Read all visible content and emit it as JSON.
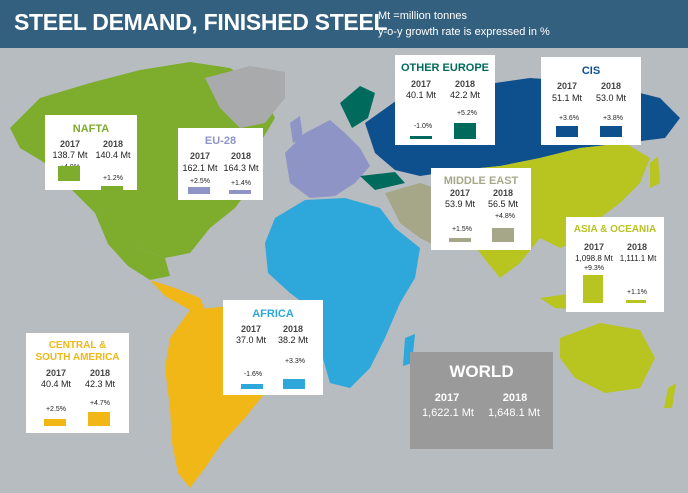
{
  "title": "STEEL DEMAND, FINISHED STEEL",
  "notes": [
    "Mt =million tonnes",
    "y-o-y growth rate is expressed in %"
  ],
  "colors": {
    "header": "#34607f",
    "background": "#b7bcc1",
    "nafta": "#7eac2d",
    "eu28": "#8e95c6",
    "other_europe": "#006a5c",
    "cis": "#0e4f8e",
    "middle_east": "#a6a789",
    "asia_oceania": "#b8c41f",
    "africa": "#2ea7da",
    "central_south_america": "#f1b716",
    "world": "#9a9a9a"
  },
  "chart_data": {
    "type": "bar",
    "unit": "Mt",
    "years": [
      "2017",
      "2018"
    ],
    "regions": [
      {
        "key": "nafta",
        "name": "NAFTA",
        "values_label": [
          "138.7 Mt",
          "140.4 Mt"
        ],
        "values": [
          138.7,
          140.4
        ],
        "growth_label": [
          "+4.9%",
          "+1.2%"
        ],
        "growth": [
          4.9,
          1.2
        ]
      },
      {
        "key": "eu28",
        "name": "EU-28",
        "values_label": [
          "162.1 Mt",
          "164.3 Mt"
        ],
        "values": [
          162.1,
          164.3
        ],
        "growth_label": [
          "+2.5%",
          "+1.4%"
        ],
        "growth": [
          2.5,
          1.4
        ]
      },
      {
        "key": "other_europe",
        "name": "OTHER EUROPE",
        "values_label": [
          "40.1 Mt",
          "42.2 Mt"
        ],
        "values": [
          40.1,
          42.2
        ],
        "growth_label": [
          "-1.0%",
          "+5.2%"
        ],
        "growth": [
          -1.0,
          5.2
        ]
      },
      {
        "key": "cis",
        "name": "CIS",
        "values_label": [
          "51.1 Mt",
          "53.0 Mt"
        ],
        "values": [
          51.1,
          53.0
        ],
        "growth_label": [
          "+3.6%",
          "+3.8%"
        ],
        "growth": [
          3.6,
          3.8
        ]
      },
      {
        "key": "middle_east",
        "name": "MIDDLE EAST",
        "values_label": [
          "53.9 Mt",
          "56.5 Mt"
        ],
        "values": [
          53.9,
          56.5
        ],
        "growth_label": [
          "+1.5%",
          "+4.8%"
        ],
        "growth": [
          1.5,
          4.8
        ]
      },
      {
        "key": "asia_oceania",
        "name": "ASIA & OCEANIA",
        "values_label": [
          "1,098.8 Mt",
          "1,111.1 Mt"
        ],
        "values": [
          1098.8,
          1111.1
        ],
        "growth_label": [
          "+9.3%",
          "+1.1%"
        ],
        "growth": [
          9.3,
          1.1
        ]
      },
      {
        "key": "africa",
        "name": "AFRICA",
        "values_label": [
          "37.0 Mt",
          "38.2 Mt"
        ],
        "values": [
          37.0,
          38.2
        ],
        "growth_label": [
          "-1.6%",
          "+3.3%"
        ],
        "growth": [
          -1.6,
          3.3
        ]
      },
      {
        "key": "central_south_america",
        "name": "CENTRAL & SOUTH AMERICA",
        "values_label": [
          "40.4 Mt",
          "42.3 Mt"
        ],
        "values": [
          40.4,
          42.3
        ],
        "growth_label": [
          "+2.5%",
          "+4.7%"
        ],
        "growth": [
          2.5,
          4.7
        ]
      }
    ],
    "world": {
      "name": "WORLD",
      "values_label": [
        "1,622.1 Mt",
        "1,648.1 Mt"
      ],
      "values": [
        1622.1,
        1648.1
      ]
    }
  }
}
